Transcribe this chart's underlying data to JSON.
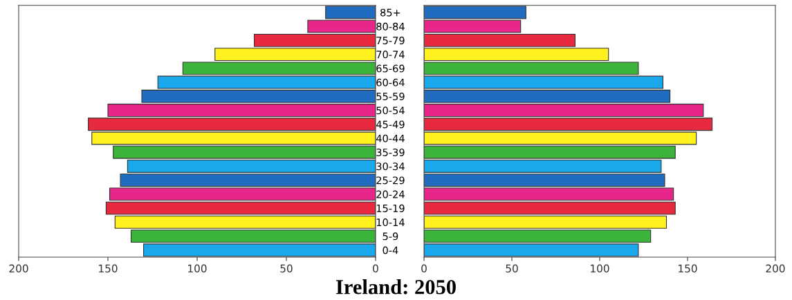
{
  "chart_data": [
    {
      "type": "bar",
      "orientation": "horizontal",
      "title": "Ireland: 2050",
      "tick_labels": "x",
      "values": [
        28,
        38,
        68,
        90,
        108,
        122,
        131,
        150,
        161,
        159,
        147,
        139,
        143,
        149,
        151,
        146,
        137,
        130
      ],
      "colors": [
        "#1f6cc0",
        "#e8268a",
        "#e82a40",
        "#fff01e",
        "#3cb43c",
        "#1aa8ec",
        "#1f6cc0",
        "#e8268a",
        "#e82a40",
        "#fff01e",
        "#3cb43c",
        "#1aa8ec",
        "#1f6cc0",
        "#e8268a",
        "#e82a40",
        "#fff01e",
        "#3cb43c",
        "#1aa8ec"
      ],
      "xlim": [
        200,
        0
      ],
      "xticks": [
        200,
        150,
        100,
        50,
        0
      ],
      "grid": false
    },
    {
      "type": "bar",
      "orientation": "horizontal",
      "categories": [
        "85+",
        "80-84",
        "75-79",
        "70-74",
        "65-69",
        "60-64",
        "55-59",
        "50-54",
        "45-49",
        "40-44",
        "35-39",
        "30-34",
        "25-29",
        "20-24",
        "15-19",
        "10-14",
        "5-9",
        "0-4"
      ],
      "values": [
        58,
        55,
        86,
        105,
        122,
        136,
        140,
        159,
        164,
        155,
        143,
        135,
        137,
        142,
        143,
        138,
        129,
        122
      ],
      "colors": [
        "#1f6cc0",
        "#e8268a",
        "#e82a40",
        "#fff01e",
        "#3cb43c",
        "#1aa8ec",
        "#1f6cc0",
        "#e8268a",
        "#e82a40",
        "#fff01e",
        "#3cb43c",
        "#1aa8ec",
        "#1f6cc0",
        "#e8268a",
        "#e82a40",
        "#fff01e",
        "#3cb43c",
        "#1aa8ec"
      ],
      "xlim": [
        0,
        200
      ],
      "xticks": [
        0,
        50,
        100,
        150,
        200
      ],
      "grid": false
    }
  ]
}
